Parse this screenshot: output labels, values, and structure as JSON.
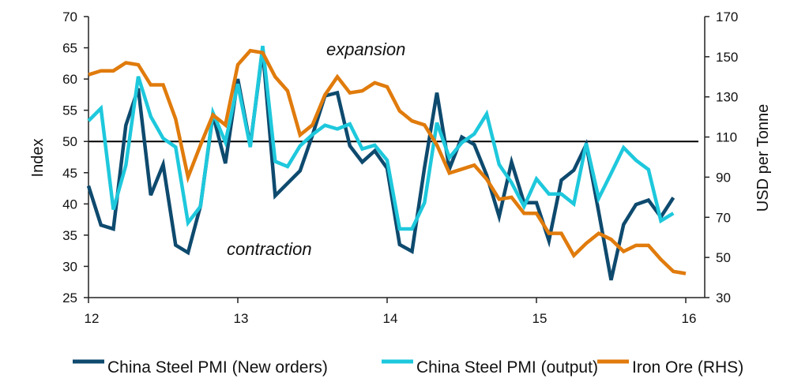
{
  "chart_data": {
    "type": "line",
    "title": "",
    "xlabel": "",
    "ylabel": "Index",
    "y2label": "USD per Tonne",
    "x_start": "2012-01",
    "x_frequency": "monthly",
    "x_ticks": [
      12,
      13,
      14,
      15,
      16
    ],
    "x_tick_labels": [
      "12",
      "13",
      "14",
      "15",
      "16"
    ],
    "xlim": [
      12,
      16.1667
    ],
    "ylim": [
      25,
      70
    ],
    "y_ticks": [
      25,
      30,
      35,
      40,
      45,
      50,
      55,
      60,
      65,
      70
    ],
    "y2lim": [
      30,
      170
    ],
    "y2_ticks": [
      30,
      50,
      70,
      90,
      110,
      130,
      150,
      170
    ],
    "reference_line": {
      "axis": "left",
      "value": 50
    },
    "annotations": [
      {
        "text": "expansion",
        "x": 14.75,
        "y": 65
      },
      {
        "text": "contraction",
        "x": 13.8,
        "y": 33
      }
    ],
    "legend_position": "bottom",
    "series": [
      {
        "name": "China Steel PMI  (New orders)",
        "axis": "left",
        "color": "#0e4a6e",
        "values": [
          42.9,
          36.6,
          36.0,
          52.6,
          58.5,
          41.4,
          46.3,
          33.4,
          32.2,
          39.7,
          54.3,
          46.5,
          60.0,
          49.4,
          64.7,
          41.3,
          43.3,
          45.3,
          51.0,
          57.3,
          57.8,
          49.3,
          46.7,
          48.5,
          45.7,
          33.5,
          32.4,
          45.8,
          57.8,
          45.6,
          50.7,
          49.5,
          44.6,
          38.0,
          46.7,
          40.2,
          40.2,
          34.1,
          43.8,
          45.4,
          49.5,
          38.7,
          27.8,
          36.7,
          39.9,
          40.6,
          37.9,
          41.0
        ]
      },
      {
        "name": "China Steel PMI (output)",
        "axis": "left",
        "color": "#1ec8dc",
        "values": [
          53.3,
          55.3,
          39.1,
          46.2,
          60.4,
          54.0,
          50.5,
          49.1,
          37.0,
          39.6,
          54.6,
          49.9,
          59.2,
          49.1,
          65.3,
          46.8,
          46.0,
          49.3,
          51.1,
          52.6,
          52.0,
          52.8,
          48.8,
          49.4,
          47.0,
          36.0,
          36.0,
          40.2,
          53.0,
          47.4,
          49.8,
          51.2,
          54.4,
          46.3,
          43.4,
          39.6,
          44.0,
          41.6,
          41.6,
          40.0,
          49.7,
          40.9,
          44.9,
          49.0,
          47.0,
          45.5,
          37.3,
          38.5
        ]
      },
      {
        "name": "Iron Ore (RHS)",
        "axis": "right",
        "color": "#e07b0c",
        "values": [
          141,
          143,
          143,
          147,
          146,
          136,
          136,
          119,
          90,
          106,
          121,
          116,
          146,
          153,
          152,
          140,
          133,
          111,
          116,
          131,
          140,
          132,
          133,
          137,
          135,
          123,
          118,
          116,
          106,
          92,
          94,
          96,
          89,
          79,
          80,
          72,
          72,
          62,
          62,
          51,
          57,
          62,
          59,
          53,
          56,
          56,
          49,
          43,
          42
        ]
      }
    ]
  }
}
